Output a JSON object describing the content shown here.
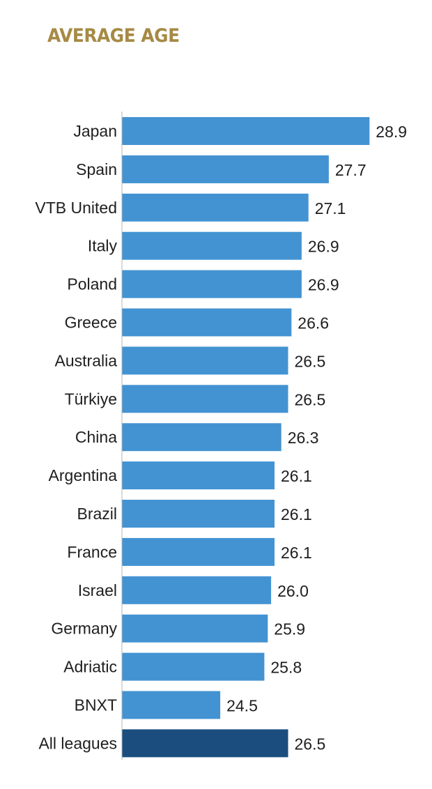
{
  "chart_data": {
    "type": "bar",
    "orientation": "horizontal",
    "title": "AVERAGE AGE",
    "xlabel": "",
    "ylabel": "",
    "xlim": [
      21.6,
      29.1
    ],
    "grid": false,
    "legend": "none",
    "categories": [
      "Japan",
      "Spain",
      "VTB United",
      "Italy",
      "Poland",
      "Greece",
      "Australia",
      "Türkiye",
      "China",
      "Argentina",
      "Brazil",
      "France",
      "Israel",
      "Germany",
      "Adriatic",
      "BNXT",
      "All leagues"
    ],
    "values": [
      28.9,
      27.7,
      27.1,
      26.9,
      26.9,
      26.6,
      26.5,
      26.5,
      26.3,
      26.1,
      26.1,
      26.1,
      26.0,
      25.9,
      25.8,
      24.5,
      26.5
    ],
    "value_labels": [
      "28.9",
      "27.7",
      "27.1",
      "26.9",
      "26.9",
      "26.6",
      "26.5",
      "26.5",
      "26.3",
      "26.1",
      "26.1",
      "26.1",
      "26.0",
      "25.9",
      "25.8",
      "24.5",
      "26.5"
    ],
    "highlight_category": "All leagues",
    "colors": {
      "bar": "#4393d2",
      "highlight": "#1b4e7e",
      "axis": "#b5b5b5",
      "title": "#a68a45"
    }
  }
}
